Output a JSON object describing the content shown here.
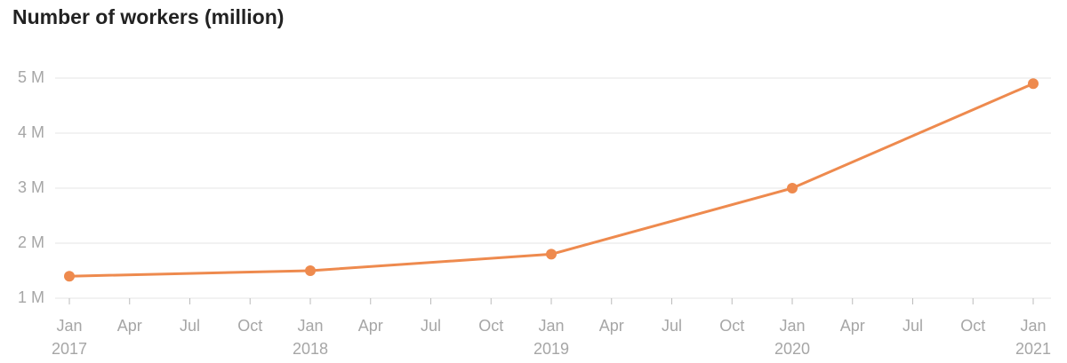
{
  "chart_data": {
    "type": "line",
    "title": "Number of workers (million)",
    "x": [
      2017,
      2018,
      2019,
      2020,
      2021
    ],
    "values": [
      1.4,
      1.5,
      1.8,
      3.0,
      4.9
    ],
    "color": "#ee8a4e",
    "xlim": [
      2017,
      2021
    ],
    "xticks": [
      {
        "value": 2017,
        "label": "Jan"
      },
      {
        "value": 2017.25,
        "label": "Apr"
      },
      {
        "value": 2017.5,
        "label": "Jul"
      },
      {
        "value": 2017.75,
        "label": "Oct"
      },
      {
        "value": 2018,
        "label": "Jan"
      },
      {
        "value": 2018.25,
        "label": "Apr"
      },
      {
        "value": 2018.5,
        "label": "Jul"
      },
      {
        "value": 2018.75,
        "label": "Oct"
      },
      {
        "value": 2019,
        "label": "Jan"
      },
      {
        "value": 2019.25,
        "label": "Apr"
      },
      {
        "value": 2019.5,
        "label": "Jul"
      },
      {
        "value": 2019.75,
        "label": "Oct"
      },
      {
        "value": 2020,
        "label": "Jan"
      },
      {
        "value": 2020.25,
        "label": "Apr"
      },
      {
        "value": 2020.5,
        "label": "Jul"
      },
      {
        "value": 2020.75,
        "label": "Oct"
      },
      {
        "value": 2021,
        "label": "Jan"
      }
    ],
    "xyearticks": [
      2017,
      2018,
      2019,
      2020,
      2021
    ],
    "ylim": [
      1,
      5.2
    ],
    "yticks": [
      {
        "value": 1,
        "label": "1 M"
      },
      {
        "value": 2,
        "label": "2 M"
      },
      {
        "value": 3,
        "label": "3 M"
      },
      {
        "value": 4,
        "label": "4 M"
      },
      {
        "value": 5,
        "label": "5 M"
      }
    ],
    "grid": true
  }
}
